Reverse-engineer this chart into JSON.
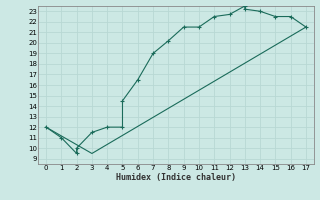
{
  "xlabel": "Humidex (Indice chaleur)",
  "xlim": [
    -0.5,
    17.5
  ],
  "ylim": [
    8.5,
    23.5
  ],
  "xticks": [
    0,
    1,
    2,
    3,
    4,
    5,
    6,
    7,
    8,
    9,
    10,
    11,
    12,
    13,
    14,
    15,
    16,
    17
  ],
  "yticks": [
    9,
    10,
    11,
    12,
    13,
    14,
    15,
    16,
    17,
    18,
    19,
    20,
    21,
    22,
    23
  ],
  "line_color": "#1a6b5a",
  "bg_color": "#cce8e4",
  "grid_color": "#b8d8d4",
  "line1_x": [
    0,
    1,
    2,
    2,
    3,
    4,
    5,
    5,
    6,
    7,
    8,
    9,
    10,
    11,
    12,
    13,
    13,
    14,
    15,
    16,
    17
  ],
  "line1_y": [
    12,
    11,
    9.5,
    10,
    11.5,
    12,
    12,
    14.5,
    16.5,
    19,
    20.2,
    21.5,
    21.5,
    22.5,
    22.7,
    23.5,
    23.2,
    23,
    22.5,
    22.5,
    21.5
  ],
  "line2_x": [
    0,
    3,
    17
  ],
  "line2_y": [
    12,
    9.5,
    21.5
  ],
  "marker": "+"
}
